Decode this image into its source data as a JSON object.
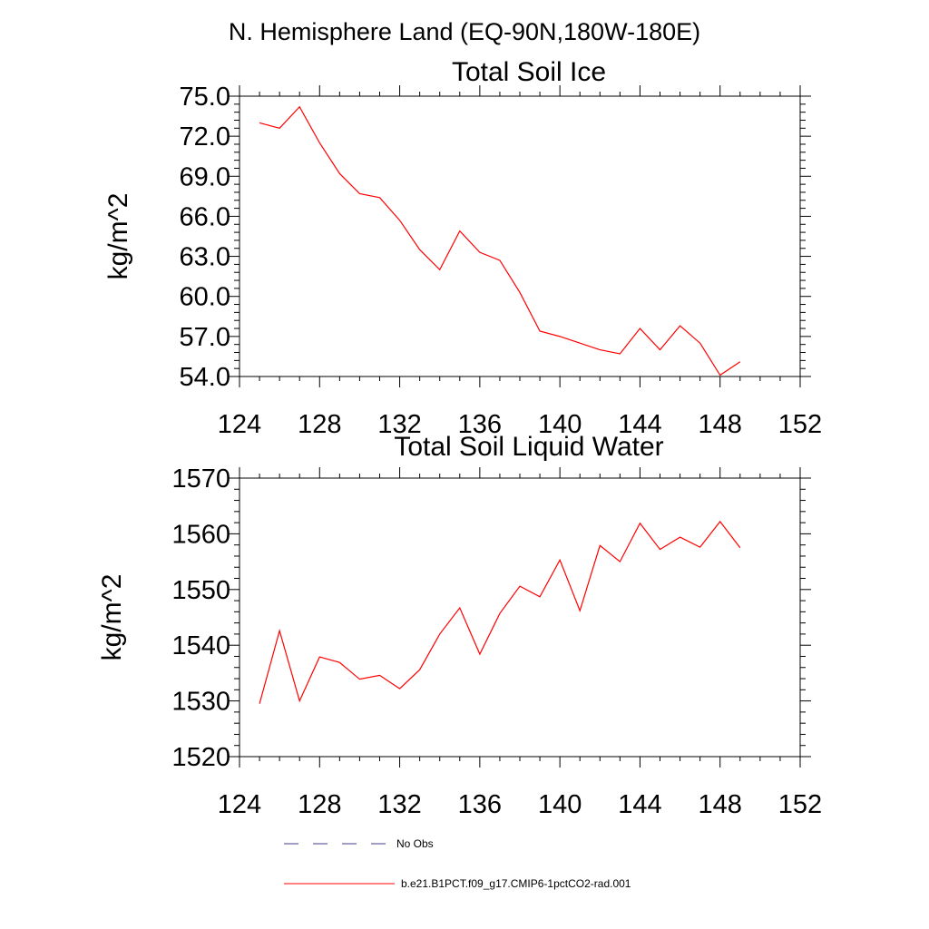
{
  "figure_title": "N. Hemisphere Land (EQ-90N,180W-180E)",
  "colors": {
    "model_line": "#ff0000",
    "obs_line": "#3d3d8c",
    "axes": "#000000",
    "background": "#ffffff"
  },
  "legend": {
    "obs_label": "No Obs",
    "model_label": "b.e21.B1PCT.f09_g17.CMIP6-1pctCO2-rad.001"
  },
  "chart_data": [
    {
      "type": "line",
      "title": "Total Soil Ice",
      "xlabel": "",
      "ylabel": "kg/m^2",
      "xlim": [
        124,
        152
      ],
      "ylim": [
        54.0,
        75.0
      ],
      "x_ticks": [
        "124",
        "128",
        "132",
        "136",
        "140",
        "144",
        "148",
        "152"
      ],
      "y_ticks": [
        "54.0",
        "57.0",
        "60.0",
        "63.0",
        "66.0",
        "69.0",
        "72.0",
        "75.0"
      ],
      "x": [
        125,
        126,
        127,
        128,
        129,
        130,
        131,
        132,
        133,
        134,
        135,
        136,
        137,
        138,
        139,
        140,
        141,
        142,
        143,
        144,
        145,
        146,
        147,
        148,
        149
      ],
      "series": [
        {
          "name": "b.e21.B1PCT.f09_g17.CMIP6-1pctCO2-rad.001",
          "values": [
            73.0,
            72.6,
            74.2,
            71.5,
            69.2,
            67.7,
            67.4,
            65.7,
            63.5,
            62.0,
            64.9,
            63.3,
            62.7,
            60.3,
            57.4,
            57.0,
            56.5,
            56.0,
            55.7,
            57.6,
            56.0,
            57.8,
            56.5,
            54.1,
            55.1
          ]
        }
      ],
      "grid": false
    },
    {
      "type": "line",
      "title": "Total Soil Liquid Water",
      "xlabel": "",
      "ylabel": "kg/m^2",
      "xlim": [
        124,
        152
      ],
      "ylim": [
        1520,
        1570
      ],
      "x_ticks": [
        "124",
        "128",
        "132",
        "136",
        "140",
        "144",
        "148",
        "152"
      ],
      "y_ticks": [
        "1520",
        "1530",
        "1540",
        "1550",
        "1560",
        "1570"
      ],
      "x": [
        125,
        126,
        127,
        128,
        129,
        130,
        131,
        132,
        133,
        134,
        135,
        136,
        137,
        138,
        139,
        140,
        141,
        142,
        143,
        144,
        145,
        146,
        147,
        148,
        149
      ],
      "series": [
        {
          "name": "b.e21.B1PCT.f09_g17.CMIP6-1pctCO2-rad.001",
          "values": [
            1529.5,
            1542.6,
            1530.0,
            1537.9,
            1536.9,
            1533.9,
            1534.6,
            1532.2,
            1535.6,
            1542.0,
            1546.7,
            1538.4,
            1545.7,
            1550.6,
            1548.7,
            1555.3,
            1546.2,
            1557.9,
            1555.0,
            1561.9,
            1557.2,
            1559.4,
            1557.6,
            1562.2,
            1557.5
          ]
        }
      ],
      "grid": false
    }
  ]
}
